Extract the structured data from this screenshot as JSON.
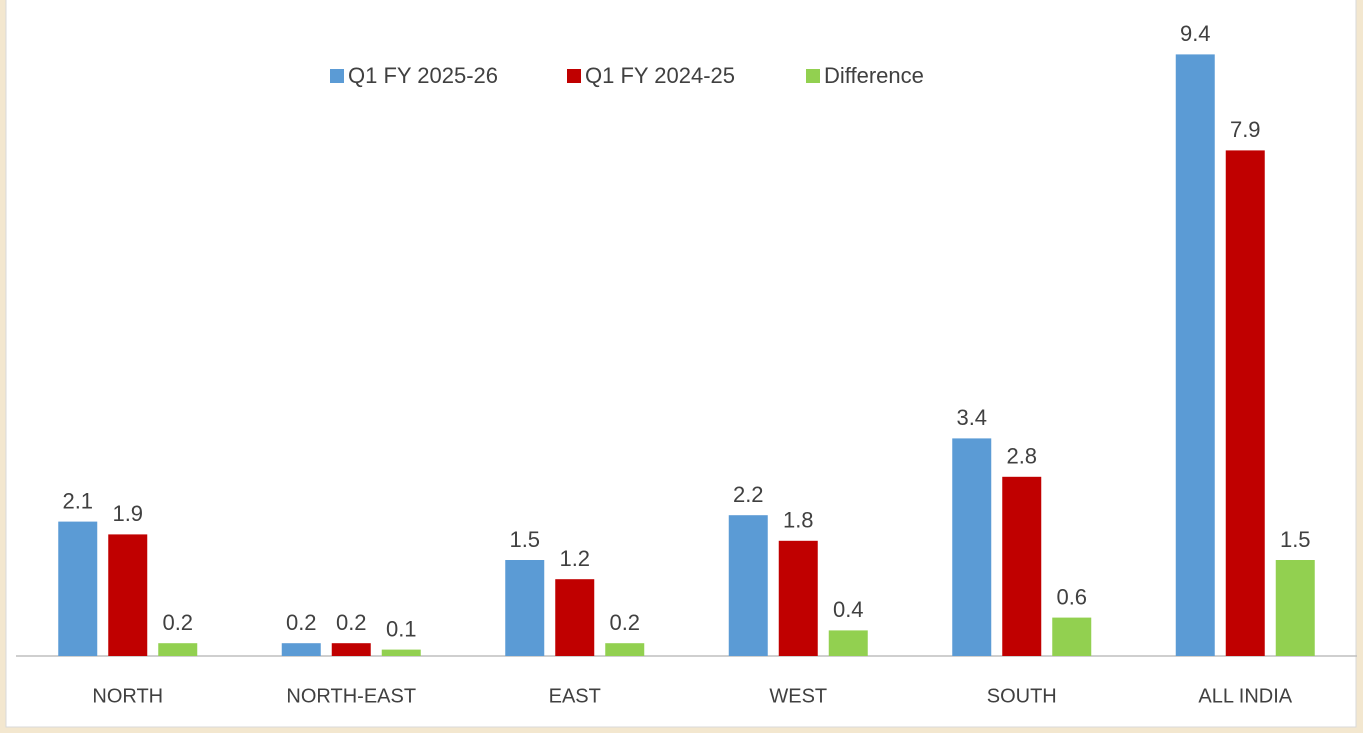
{
  "chart_data": {
    "type": "bar",
    "categories": [
      "NORTH",
      "NORTH-EAST",
      "EAST",
      "WEST",
      "SOUTH",
      "ALL INDIA"
    ],
    "series": [
      {
        "name": "Q1 FY 2025-26",
        "color": "#5b9bd5",
        "values": [
          2.1,
          0.2,
          1.5,
          2.2,
          3.4,
          9.4
        ]
      },
      {
        "name": "Q1 FY 2024-25",
        "color": "#c00000",
        "values": [
          1.9,
          0.2,
          1.2,
          1.8,
          2.8,
          7.9
        ]
      },
      {
        "name": "Difference",
        "color": "#92d050",
        "values": [
          0.2,
          0.1,
          0.2,
          0.4,
          0.6,
          1.5
        ]
      }
    ],
    "ylim": [
      0,
      10
    ],
    "legend": "top"
  }
}
